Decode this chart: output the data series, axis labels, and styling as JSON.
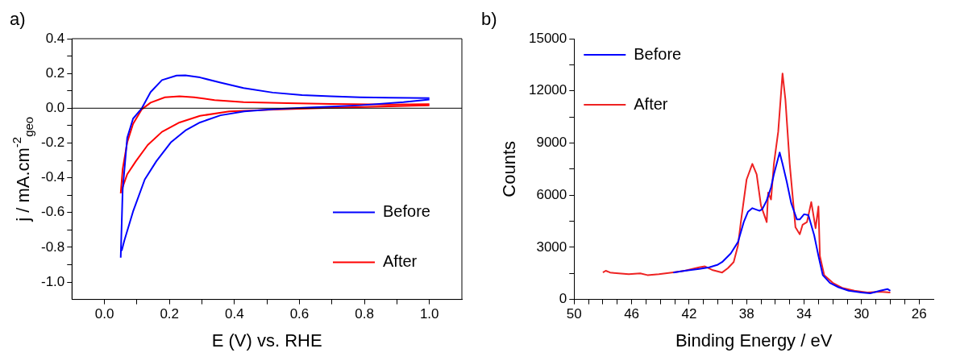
{
  "chart_data": [
    {
      "type": "line",
      "title": "a)",
      "xlabel": "E (V) vs. RHE",
      "ylabel": "j / mA.cm$^{-2}$$_{geo}$",
      "xlim": [
        -0.1,
        1.1
      ],
      "ylim": [
        -1.1,
        0.4
      ],
      "xticks": [
        {
          "value": 0,
          "label": "0.0"
        },
        {
          "value": 0.1,
          "label": null
        },
        {
          "value": 0.2,
          "label": "0.2"
        },
        {
          "value": 0.3,
          "label": null
        },
        {
          "value": 0.4,
          "label": "0.4"
        },
        {
          "value": 0.5,
          "label": null
        },
        {
          "value": 0.6,
          "label": "0.6"
        },
        {
          "value": 0.7,
          "label": null
        },
        {
          "value": 0.8,
          "label": "0.8"
        },
        {
          "value": 0.9,
          "label": null
        },
        {
          "value": 1,
          "label": "1.0"
        }
      ],
      "yticks": [
        {
          "value": -1,
          "label": "-1.0"
        },
        {
          "value": -0.9,
          "label": null
        },
        {
          "value": -0.8,
          "label": "-0.8"
        },
        {
          "value": -0.7,
          "label": null
        },
        {
          "value": -0.6,
          "label": "-0.6"
        },
        {
          "value": -0.5,
          "label": null
        },
        {
          "value": -0.4,
          "label": "-0.4"
        },
        {
          "value": -0.3,
          "label": null
        },
        {
          "value": -0.2,
          "label": "-0.2"
        },
        {
          "value": -0.1,
          "label": null
        },
        {
          "value": 0,
          "label": "0.0"
        },
        {
          "value": 0.1,
          "label": null
        },
        {
          "value": 0.2,
          "label": "0.2"
        },
        {
          "value": 0.3,
          "label": null
        },
        {
          "value": 0.4,
          "label": "0.4"
        }
      ],
      "ref_lines": [
        {
          "axis": "y",
          "value": 0,
          "color": "#000000"
        }
      ],
      "grid": false,
      "legend": "bottom right",
      "marker": "none",
      "line_style": "solid",
      "series": [
        {
          "name": "Before",
          "color": "#0000ff",
          "x": [
            0.05,
            0.056,
            0.07,
            0.088,
            0.115,
            0.142,
            0.177,
            0.222,
            0.249,
            0.294,
            0.357,
            0.428,
            0.518,
            0.608,
            0.697,
            0.787,
            0.876,
            1.0
          ],
          "values": [
            -0.86,
            -0.47,
            -0.17,
            -0.06,
            0.0,
            0.093,
            0.162,
            0.188,
            0.189,
            0.177,
            0.147,
            0.116,
            0.09,
            0.076,
            0.069,
            0.063,
            0.06,
            0.058
          ]
        },
        {
          "color": "#0000ff",
          "x": [
            0.053,
            0.061,
            0.088,
            0.124,
            0.16,
            0.204,
            0.249,
            0.294,
            0.357,
            0.43,
            0.52,
            0.61,
            0.7,
            0.787,
            0.92,
            1.0
          ],
          "values": [
            -0.82,
            -0.762,
            -0.594,
            -0.41,
            -0.304,
            -0.197,
            -0.128,
            -0.082,
            -0.041,
            -0.018,
            -0.006,
            0.002,
            0.009,
            0.017,
            0.035,
            0.05
          ]
        },
        {
          "name": "After",
          "color": "#ff0000",
          "x": [
            0.05,
            0.056,
            0.07,
            0.088,
            0.115,
            0.142,
            0.186,
            0.231,
            0.276,
            0.339,
            0.428,
            0.563,
            0.697,
            0.876,
            1.0
          ],
          "values": [
            -0.49,
            -0.35,
            -0.197,
            -0.09,
            -0.006,
            0.032,
            0.063,
            0.069,
            0.063,
            0.047,
            0.035,
            0.029,
            0.024,
            0.021,
            0.023
          ]
        },
        {
          "color": "#ff0000",
          "x": [
            0.053,
            0.07,
            0.097,
            0.133,
            0.177,
            0.231,
            0.294,
            0.384,
            0.52,
            0.7,
            0.876,
            1.0
          ],
          "values": [
            -0.47,
            -0.38,
            -0.304,
            -0.212,
            -0.136,
            -0.082,
            -0.044,
            -0.018,
            -0.008,
            0.002,
            0.011,
            0.017
          ]
        }
      ]
    },
    {
      "type": "line",
      "title": "b)",
      "xlabel": "Binding Energy / eV",
      "ylabel": "Counts",
      "xlim": [
        50,
        25
      ],
      "ylim": [
        0,
        15000
      ],
      "xticks": [
        50,
        {
          "value": 49,
          "label": null
        },
        {
          "value": 48,
          "label": null
        },
        {
          "value": 47,
          "label": null
        },
        46,
        {
          "value": 45,
          "label": null
        },
        {
          "value": 44,
          "label": null
        },
        {
          "value": 43,
          "label": null
        },
        42,
        {
          "value": 41,
          "label": null
        },
        {
          "value": 40,
          "label": null
        },
        {
          "value": 39,
          "label": null
        },
        38,
        {
          "value": 37,
          "label": null
        },
        {
          "value": 36,
          "label": null
        },
        {
          "value": 35,
          "label": null
        },
        34,
        {
          "value": 33,
          "label": null
        },
        {
          "value": 32,
          "label": null
        },
        {
          "value": 31,
          "label": null
        },
        30,
        {
          "value": 29,
          "label": null
        },
        {
          "value": 28,
          "label": null
        },
        {
          "value": 27,
          "label": null
        },
        26
      ],
      "yticks": [
        0,
        {
          "value": 1500,
          "label": null
        },
        3000,
        {
          "value": 4500,
          "label": null
        },
        6000,
        {
          "value": 7500,
          "label": null
        },
        9000,
        {
          "value": 10500,
          "label": null
        },
        12000,
        {
          "value": 13500,
          "label": null
        },
        15000
      ],
      "grid": false,
      "legend": "top left",
      "marker": "none",
      "line_style": "solid",
      "series": [
        {
          "name": "Before",
          "color": "#0000ff",
          "x": [
            43.1,
            42.3,
            41.3,
            40.6,
            40.0,
            39.7,
            39.1,
            38.6,
            38.2,
            37.9,
            37.6,
            37.1,
            36.9,
            36.6,
            36.3,
            36.1,
            35.7,
            35.5,
            35.2,
            34.9,
            34.5,
            34.3,
            34.0,
            33.7,
            33.3,
            33.0,
            32.7,
            32.2,
            31.6,
            30.9,
            30.0,
            29.4,
            28.7,
            28.2,
            28.0
          ],
          "values": [
            1550,
            1650,
            1750,
            1850,
            2000,
            2150,
            2650,
            3300,
            4450,
            5050,
            5250,
            5100,
            5200,
            5700,
            6450,
            7200,
            8450,
            7800,
            6750,
            5550,
            4600,
            4600,
            4900,
            4850,
            3700,
            2500,
            1400,
            950,
            700,
            500,
            400,
            350,
            500,
            600,
            500
          ]
        },
        {
          "name": "After",
          "color": "#ee2222",
          "x": [
            48.0,
            47.8,
            47.5,
            46.9,
            46.2,
            45.4,
            44.9,
            44.1,
            43.2,
            42.3,
            41.3,
            40.9,
            40.4,
            39.7,
            39.3,
            38.9,
            38.6,
            38.4,
            38.0,
            37.6,
            37.3,
            37.0,
            36.6,
            36.5,
            36.3,
            36.1,
            35.8,
            35.5,
            35.3,
            35.0,
            34.6,
            34.3,
            34.1,
            33.8,
            33.5,
            33.2,
            33.0,
            32.9,
            32.6,
            32.0,
            31.3,
            30.5,
            29.6,
            28.7,
            28.0
          ],
          "values": [
            1550,
            1650,
            1550,
            1500,
            1450,
            1500,
            1400,
            1450,
            1550,
            1650,
            1850,
            1900,
            1700,
            1550,
            1800,
            2150,
            3100,
            4450,
            6900,
            7800,
            7200,
            5400,
            4450,
            6150,
            5750,
            7800,
            9650,
            13000,
            11500,
            7800,
            4150,
            3750,
            4300,
            4450,
            5600,
            4100,
            5350,
            2500,
            1400,
            950,
            650,
            500,
            400,
            450,
            400
          ]
        }
      ]
    }
  ]
}
